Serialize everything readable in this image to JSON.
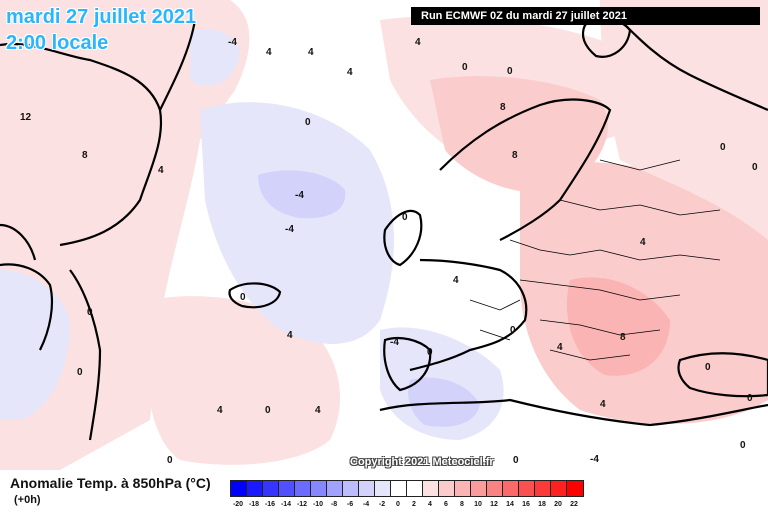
{
  "title": {
    "date_line": "mardi 27 juillet 2021",
    "time_line": "2:00 locale"
  },
  "run_banner": "Run ECMWF 0Z du mardi 27 juillet 2021",
  "copyright": "Copyright 2021 Meteociel.fr",
  "legend": {
    "title": "Anomalie Temp. à 850hPa (°C)",
    "subtitle": "(+0h)",
    "scale": [
      {
        "label": "-20",
        "color": "#0000ff"
      },
      {
        "label": "-18",
        "color": "#1a1aff"
      },
      {
        "label": "-16",
        "color": "#3535ff"
      },
      {
        "label": "-14",
        "color": "#5050ff"
      },
      {
        "label": "-12",
        "color": "#6b6bff"
      },
      {
        "label": "-10",
        "color": "#8686ff"
      },
      {
        "label": "-8",
        "color": "#a1a1ff"
      },
      {
        "label": "-6",
        "color": "#bcbcff"
      },
      {
        "label": "-4",
        "color": "#d2d2fb"
      },
      {
        "label": "-2",
        "color": "#e6e6fb"
      },
      {
        "label": "0",
        "color": "#ffffff"
      },
      {
        "label": "2",
        "color": "#ffffff"
      },
      {
        "label": "4",
        "color": "#fbe1e1"
      },
      {
        "label": "6",
        "color": "#fbcccc"
      },
      {
        "label": "8",
        "color": "#fbb4b4"
      },
      {
        "label": "10",
        "color": "#fb9c9c"
      },
      {
        "label": "12",
        "color": "#fb8282"
      },
      {
        "label": "14",
        "color": "#fb6a6a"
      },
      {
        "label": "16",
        "color": "#fb5050"
      },
      {
        "label": "18",
        "color": "#fb3a3a"
      },
      {
        "label": "20",
        "color": "#ff2020"
      },
      {
        "label": "22",
        "color": "#ff0000"
      }
    ]
  },
  "contour_labels": [
    "-4",
    "4",
    "4",
    "0",
    "4",
    "4",
    "0",
    "0",
    "12",
    "8",
    "4",
    "8",
    "8",
    "0",
    "0",
    "0",
    "-4",
    "-4",
    "0",
    "4",
    "0",
    "0",
    "4",
    "0",
    "0",
    "-4",
    "0",
    "4",
    "4",
    "4",
    "0",
    "4",
    "8",
    "4",
    "0",
    "0",
    "0",
    "0",
    "-4"
  ],
  "colors": {
    "warm_light": "#fbe1e1",
    "warm_mid": "#fbcccc",
    "warm_strong": "#fbb4b4",
    "cool_light": "#e6e6fb",
    "cool_mid": "#d2d2fb",
    "title_accent": "#29b6ff"
  }
}
